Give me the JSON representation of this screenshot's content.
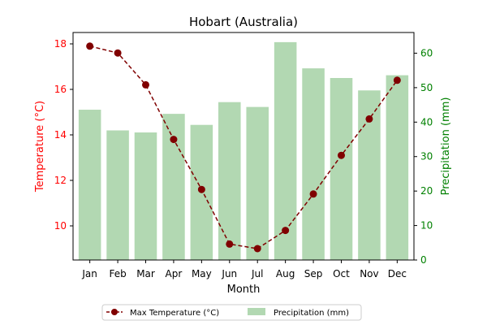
{
  "chart_data": {
    "type": "bar+line",
    "title": "Hobart (Australia)",
    "xlabel": "Month",
    "categories": [
      "Jan",
      "Feb",
      "Mar",
      "Apr",
      "May",
      "Jun",
      "Jul",
      "Aug",
      "Sep",
      "Oct",
      "Nov",
      "Dec"
    ],
    "left_axis": {
      "label": "Temperature (°C)",
      "color": "#ff0000",
      "ylim": [
        8.5,
        18.5
      ],
      "ticks": [
        "10",
        "12",
        "14",
        "16",
        "18"
      ]
    },
    "right_axis": {
      "label": "Precipitation (mm)",
      "color": "#008000",
      "ylim": [
        0,
        66
      ],
      "ticks": [
        "0",
        "10",
        "20",
        "30",
        "40",
        "50",
        "60"
      ]
    },
    "series": [
      {
        "name": "Max Temperature (°C)",
        "kind": "line",
        "axis": "left",
        "color": "#800000",
        "values": [
          17.9,
          17.6,
          16.2,
          13.8,
          11.6,
          9.2,
          9.0,
          9.8,
          11.4,
          13.1,
          14.7,
          16.4
        ]
      },
      {
        "name": "Precipitation (mm)",
        "kind": "bar",
        "axis": "right",
        "color": "#b2d8b2",
        "values": [
          43.6,
          37.6,
          37.0,
          42.4,
          39.2,
          45.8,
          44.4,
          63.2,
          55.6,
          52.8,
          49.2,
          53.6
        ]
      }
    ],
    "legend": {
      "placement": "bottom-center",
      "columns": 2
    },
    "grid": false
  }
}
